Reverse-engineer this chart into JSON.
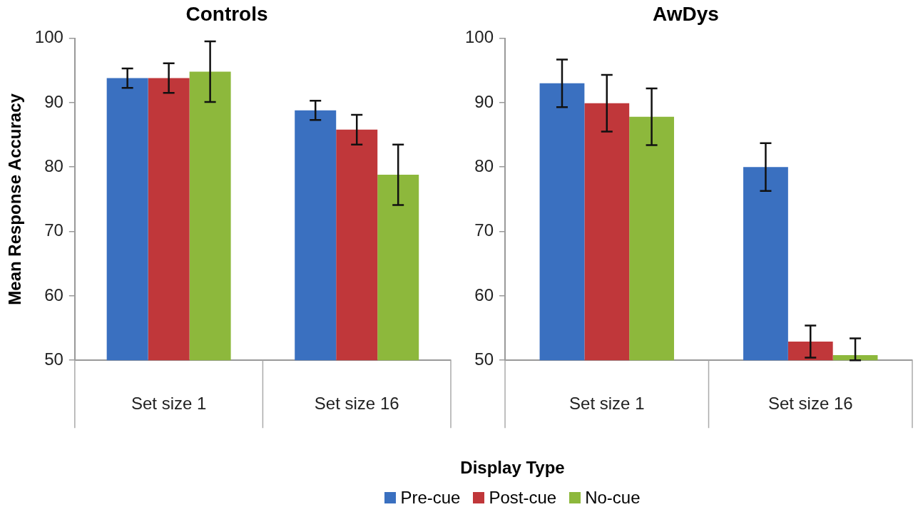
{
  "chart_data": [
    {
      "type": "bar",
      "title": "Controls",
      "ylabel": "Mean Response Accuracy",
      "xlabel": "Display Type",
      "categories": [
        "Set size 1",
        "Set size 16"
      ],
      "ylim": [
        50,
        100
      ],
      "yticks": [
        50,
        60,
        70,
        80,
        90,
        100
      ],
      "grid": false,
      "legend": "bottom",
      "series": [
        {
          "name": "Pre-cue",
          "color": "#3a70c0",
          "values": [
            93.8,
            88.8
          ],
          "errors": [
            1.5,
            1.5
          ]
        },
        {
          "name": "Post-cue",
          "color": "#c0373a",
          "values": [
            93.8,
            85.8
          ],
          "errors": [
            2.3,
            2.3
          ]
        },
        {
          "name": "No-cue",
          "color": "#8db83c",
          "values": [
            94.8,
            78.8
          ],
          "errors": [
            4.7,
            4.7
          ]
        }
      ]
    },
    {
      "type": "bar",
      "title": "AwDys",
      "categories": [
        "Set size 1",
        "Set size 16"
      ],
      "ylim": [
        50,
        100
      ],
      "yticks": [
        50,
        60,
        70,
        80,
        90,
        100
      ],
      "grid": false,
      "series": [
        {
          "color": "#3a70c0",
          "values": [
            93.0,
            80.0
          ],
          "errors": [
            3.7,
            3.7
          ]
        },
        {
          "color": "#c0373a",
          "values": [
            89.9,
            52.9
          ],
          "errors": [
            4.4,
            2.5
          ]
        },
        {
          "color": "#8db83c",
          "values": [
            87.8,
            50.8
          ],
          "errors": [
            4.4,
            [
              50,
              53.4
            ]
          ]
        }
      ]
    }
  ]
}
